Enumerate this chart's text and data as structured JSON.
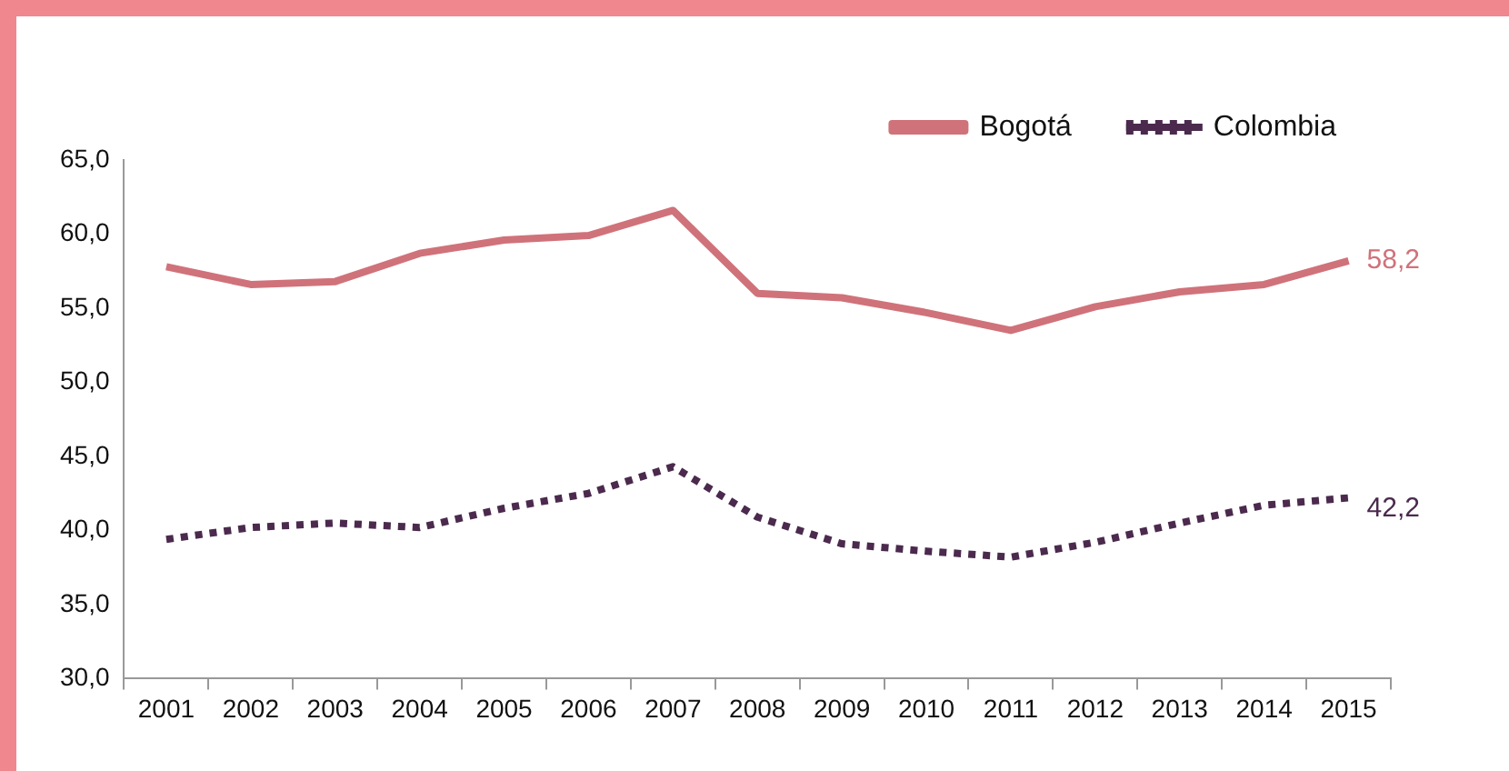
{
  "chart_data": {
    "type": "line",
    "categories": [
      "2001",
      "2002",
      "2003",
      "2004",
      "2005",
      "2006",
      "2007",
      "2008",
      "2009",
      "2010",
      "2011",
      "2012",
      "2013",
      "2014",
      "2015"
    ],
    "series": [
      {
        "name": "Bogotá",
        "color": "#d0727a",
        "line_style": "solid",
        "values": [
          57.8,
          56.6,
          56.8,
          58.7,
          59.6,
          59.9,
          61.6,
          56.0,
          55.7,
          54.7,
          53.5,
          55.1,
          56.1,
          56.6,
          58.2
        ],
        "value_labels": [
          null,
          null,
          null,
          null,
          null,
          null,
          null,
          null,
          null,
          null,
          null,
          null,
          null,
          null,
          "58,2"
        ]
      },
      {
        "name": "Colombia",
        "color": "#4b2a4e",
        "line_style": "dotted",
        "values": [
          39.4,
          40.2,
          40.5,
          40.2,
          41.5,
          42.5,
          44.3,
          40.9,
          39.1,
          38.6,
          38.2,
          39.2,
          40.5,
          41.7,
          42.2
        ],
        "value_labels": [
          null,
          null,
          null,
          null,
          null,
          null,
          null,
          null,
          null,
          null,
          null,
          null,
          null,
          null,
          "42,2"
        ]
      }
    ],
    "ylim": [
      30,
      65
    ],
    "yticks": [
      {
        "value": 30,
        "label": "30,0"
      },
      {
        "value": 35,
        "label": "35,0"
      },
      {
        "value": 40,
        "label": "40,0"
      },
      {
        "value": 45,
        "label": "45,0"
      },
      {
        "value": 50,
        "label": "50,0"
      },
      {
        "value": 55,
        "label": "55,0"
      },
      {
        "value": 60,
        "label": "60,0"
      },
      {
        "value": 65,
        "label": "65,0"
      }
    ],
    "grid": false,
    "legend": "top right",
    "marker": "none"
  }
}
